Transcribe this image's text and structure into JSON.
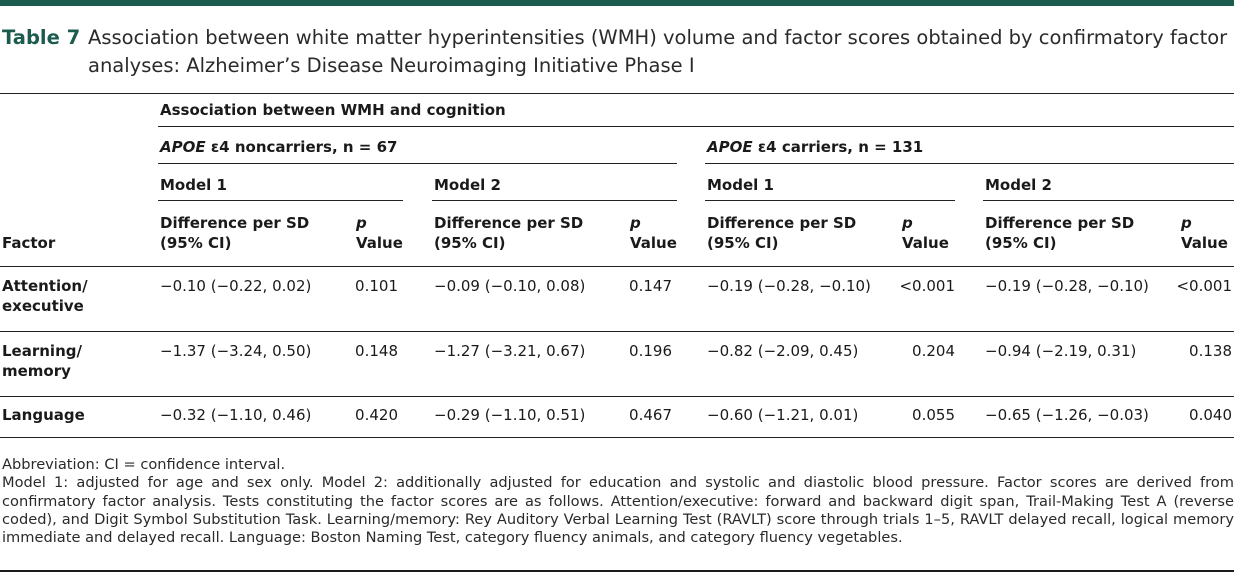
{
  "caption": {
    "label": "Table 7",
    "text": "Association between white matter hyperintensities (WMH) volume and factor scores obtained by confirmatory factor analyses: Alzheimer’s Disease Neuroimaging Initiative Phase I"
  },
  "header": {
    "spanning": "Association between WMH and cognition",
    "noncarriers_italic": "APOE",
    "noncarriers_rest": " ε4 noncarriers, n = 67",
    "carriers_italic": "APOE",
    "carriers_rest": " ε4 carriers, n = 131",
    "model1": "Model 1",
    "model2": "Model 2",
    "factor_col": "Factor",
    "diff_line1": "Difference per SD",
    "diff_line2": "(95% CI)",
    "p_line1": "p",
    "p_line2": "Value"
  },
  "rows": [
    {
      "factor_line1": "Attention/",
      "factor_line2": "executive",
      "cells": [
        "−0.10 (−0.22, 0.02)",
        "0.101",
        "−0.09 (−0.10, 0.08)",
        "0.147",
        "−0.19 (−0.28, −0.10)",
        "<0.001",
        "−0.19 (−0.28, −0.10)",
        "<0.001"
      ]
    },
    {
      "factor_line1": "Learning/",
      "factor_line2": "memory",
      "cells": [
        "−1.37 (−3.24, 0.50)",
        "0.148",
        "−1.27 (−3.21, 0.67)",
        "0.196",
        "−0.82 (−2.09, 0.45)",
        "0.204",
        "−0.94 (−2.19, 0.31)",
        "0.138"
      ]
    },
    {
      "factor_line1": "Language",
      "factor_line2": "",
      "cells": [
        "−0.32 (−1.10, 0.46)",
        "0.420",
        "−0.29 (−1.10, 0.51)",
        "0.467",
        "−0.60 (−1.21, 0.01)",
        "0.055",
        "−0.65 (−1.26, −0.03)",
        "0.040"
      ]
    }
  ],
  "footnotes": {
    "abbreviation": "Abbreviation: CI = confidence interval.",
    "note": "Model 1: adjusted for age and sex only. Model 2: additionally adjusted for education and systolic and diastolic blood pressure. Factor scores are derived from confirmatory factor analysis. Tests constituting the factor scores are as follows. Attention/executive: forward and backward digit span, Trail-Making Test A (reverse coded), and Digit Symbol Substitution Task. Learning/memory: Rey Auditory Verbal Learning Test (RAVLT) score through trials 1–5, RAVLT delayed recall, logical memory immediate and delayed recall. Language: Boston Naming Test, category fluency animals, and category fluency vegetables."
  },
  "colors": {
    "accent": "#1c5c4e",
    "text": "#1a1a1a"
  }
}
